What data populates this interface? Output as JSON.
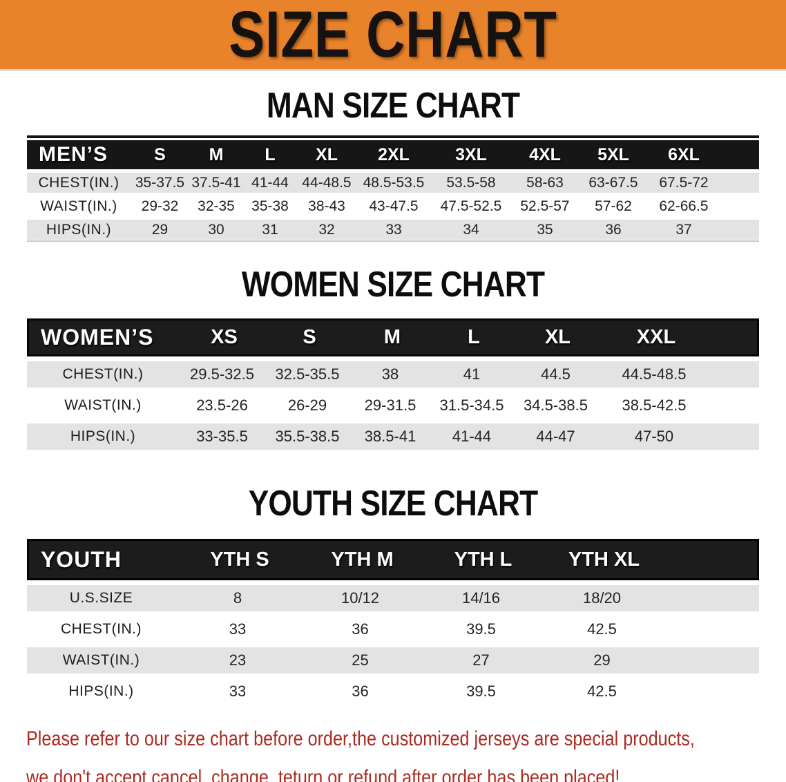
{
  "banner": {
    "title": "SIZE CHART"
  },
  "colors": {
    "banner_bg": "#E8832C",
    "header_bar_bg": "#161616",
    "stripe_gray": "#E3E3E3",
    "footer_text": "#AB2A21"
  },
  "man": {
    "heading": "MAN SIZE CHART",
    "corner": "MEN’S",
    "sizes": [
      "S",
      "M",
      "L",
      "XL",
      "2XL",
      "3XL",
      "4XL",
      "5XL",
      "6XL"
    ],
    "rows": [
      {
        "label": "CHEST(IN.)",
        "values": [
          "35-37.5",
          "37.5-41",
          "41-44",
          "44-48.5",
          "48.5-53.5",
          "53.5-58",
          "58-63",
          "63-67.5",
          "67.5-72"
        ]
      },
      {
        "label": "WAIST(IN.)",
        "values": [
          "29-32",
          "32-35",
          "35-38",
          "38-43",
          "43-47.5",
          "47.5-52.5",
          "52.5-57",
          "57-62",
          "62-66.5"
        ]
      },
      {
        "label": "HIPS(IN.)",
        "values": [
          "29",
          "30",
          "31",
          "32",
          "33",
          "34",
          "35",
          "36",
          "37"
        ]
      }
    ]
  },
  "women": {
    "heading": "WOMEN SIZE CHART",
    "corner": "WOMEN’S",
    "sizes": [
      "XS",
      "S",
      "M",
      "L",
      "XL",
      "XXL"
    ],
    "rows": [
      {
        "label": "CHEST(IN.)",
        "values": [
          "29.5-32.5",
          "32.5-35.5",
          "38",
          "41",
          "44.5",
          "44.5-48.5"
        ]
      },
      {
        "label": "WAIST(IN.)",
        "values": [
          "23.5-26",
          "26-29",
          "29-31.5",
          "31.5-34.5",
          "34.5-38.5",
          "38.5-42.5"
        ]
      },
      {
        "label": "HIPS(IN.)",
        "values": [
          "33-35.5",
          "35.5-38.5",
          "38.5-41",
          "41-44",
          "44-47",
          "47-50"
        ]
      }
    ]
  },
  "youth": {
    "heading": "YOUTH SIZE CHART",
    "corner": "YOUTH",
    "sizes": [
      "YTH S",
      "YTH M",
      "YTH L",
      "YTH XL"
    ],
    "rows": [
      {
        "label": "U.S.SIZE",
        "values": [
          "8",
          "10/12",
          "14/16",
          "18/20"
        ]
      },
      {
        "label": "CHEST(IN.)",
        "values": [
          "33",
          "36",
          "39.5",
          "42.5"
        ]
      },
      {
        "label": "WAIST(IN.)",
        "values": [
          "23",
          "25",
          "27",
          "29"
        ]
      },
      {
        "label": "HIPS(IN.)",
        "values": [
          "33",
          "36",
          "39.5",
          "42.5"
        ]
      }
    ]
  },
  "footer": {
    "line1": "Please refer to our size chart before order,the customized jerseys are special products,",
    "line2": "we don't accept cancel, change, teturn or refund after order has been placed!"
  }
}
